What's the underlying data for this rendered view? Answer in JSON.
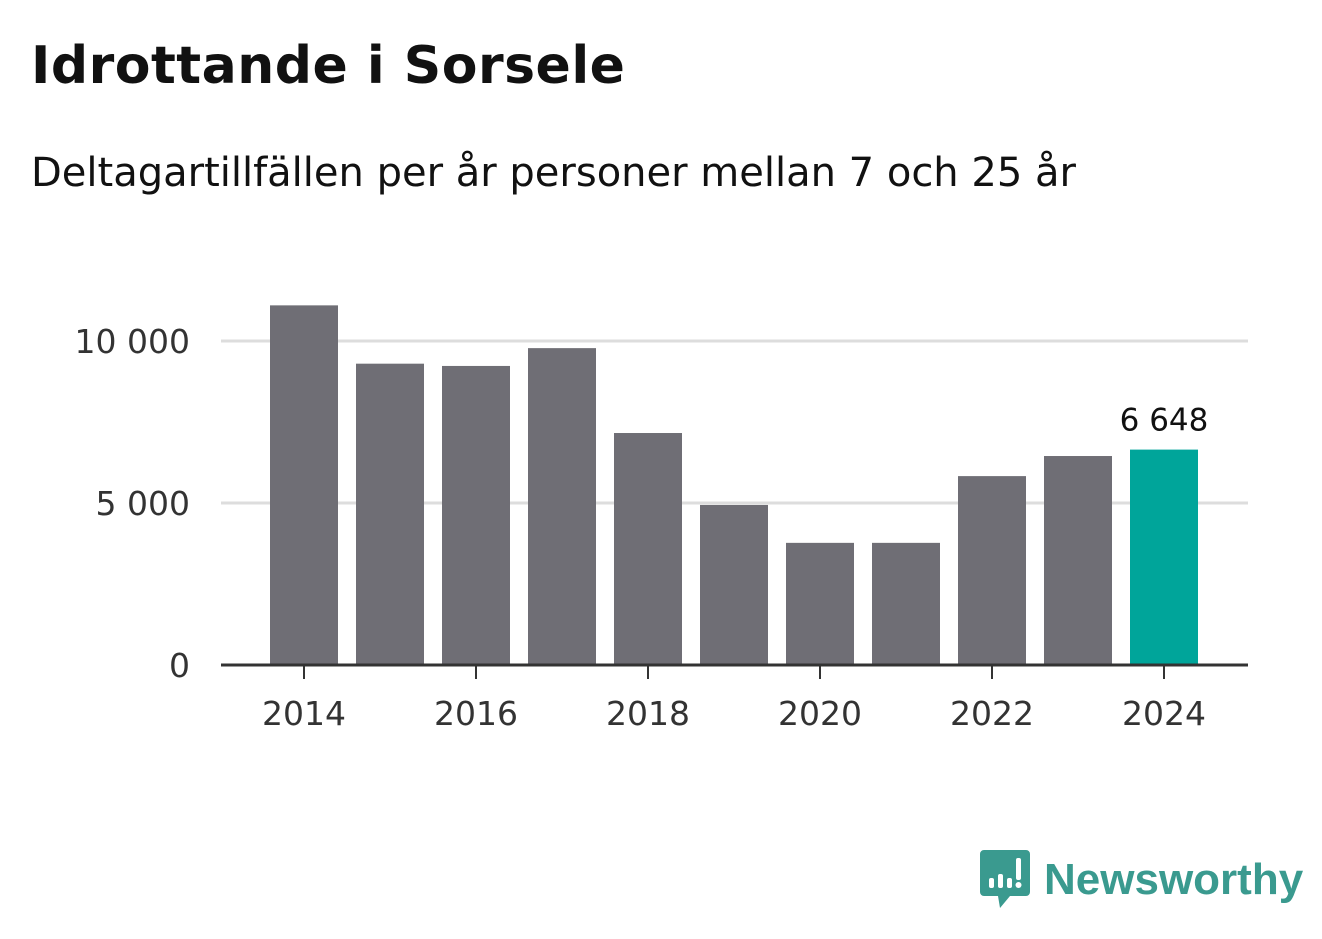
{
  "chart_data": {
    "type": "bar",
    "title": "Idrottande i Sorsele",
    "subtitle": "Deltagartillfällen per år personer mellan 7 och 25 år",
    "xlabel": "",
    "ylabel": "",
    "categories": [
      "2014",
      "2015",
      "2016",
      "2017",
      "2018",
      "2019",
      "2020",
      "2021",
      "2022",
      "2023",
      "2024"
    ],
    "values": [
      11100,
      9300,
      9230,
      9780,
      7160,
      4940,
      3770,
      3770,
      5830,
      6450,
      6648
    ],
    "ylim": [
      0,
      12000
    ],
    "yticks": [
      0,
      5000,
      10000
    ],
    "ytick_labels": [
      "0",
      "5 000",
      "10 000"
    ],
    "xtick_labels": [
      "2014",
      "2016",
      "2018",
      "2020",
      "2022",
      "2024"
    ],
    "grid": true,
    "highlight_index": 10,
    "highlight_label": "6 648",
    "colors": {
      "bar": "#6f6e75",
      "highlight": "#00a59a",
      "grid": "#dddddd",
      "axis": "#333333"
    }
  },
  "brand": {
    "name": "Newsworthy",
    "color": "#3a9a8f"
  }
}
